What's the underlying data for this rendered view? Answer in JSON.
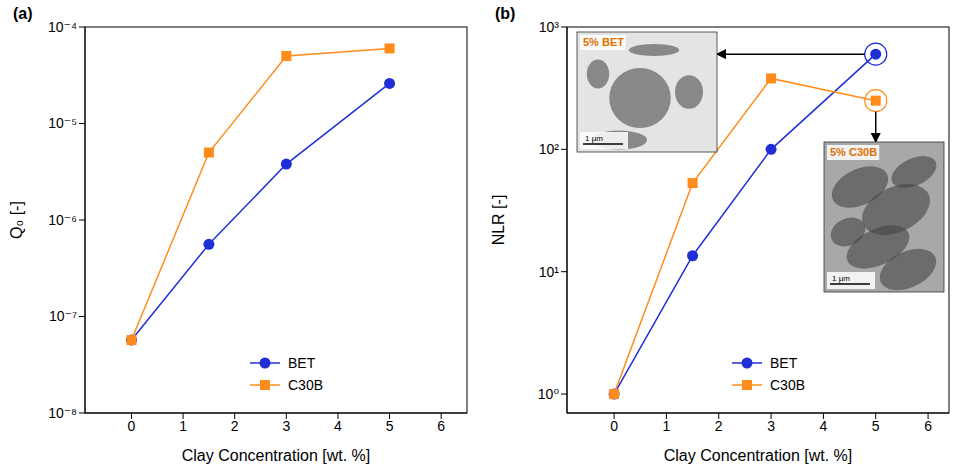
{
  "chart_data": [
    {
      "type": "line",
      "panel": "(a)",
      "x_label": "Clay Concentration [wt. %]",
      "y_label": "Q₀ [-]",
      "x": [
        0,
        1.5,
        3,
        5
      ],
      "series": [
        {
          "name": "BET",
          "color": "#1f2fd6",
          "marker": "circle",
          "values": [
            5.7e-08,
            5.6e-07,
            3.8e-06,
            2.6e-05
          ]
        },
        {
          "name": "C30B",
          "color": "#ff8c1a",
          "marker": "square",
          "values": [
            5.7e-08,
            5e-06,
            5e-05,
            6e-05
          ]
        }
      ],
      "xlim": [
        -0.9,
        6.5
      ],
      "xticks": [
        0,
        1,
        2,
        3,
        4,
        5,
        6
      ],
      "ylim": [
        1e-08,
        0.0001
      ],
      "yticks": [
        {
          "value": 1e-08,
          "label": "10⁻⁸"
        },
        {
          "value": 1e-07,
          "label": "10⁻⁷"
        },
        {
          "value": 1e-06,
          "label": "10⁻⁶"
        },
        {
          "value": 1e-05,
          "label": "10⁻⁵"
        },
        {
          "value": 0.0001,
          "label": "10⁻⁴"
        }
      ],
      "log": "y",
      "grid": false,
      "legend": "lower right"
    },
    {
      "type": "line",
      "panel": "(b)",
      "x_label": "Clay Concentration [wt. %]",
      "y_label": "NLR [-]",
      "x": [
        0,
        1.5,
        3,
        5
      ],
      "series": [
        {
          "name": "BET",
          "color": "#1f2fd6",
          "marker": "circle",
          "values": [
            1,
            13.5,
            100,
            600
          ]
        },
        {
          "name": "C30B",
          "color": "#ff8c1a",
          "marker": "square",
          "values": [
            1,
            53,
            380,
            250
          ]
        }
      ],
      "xlim": [
        -0.9,
        6.4
      ],
      "xticks": [
        0,
        1,
        2,
        3,
        4,
        5,
        6
      ],
      "ylim": [
        0.7,
        1000
      ],
      "yticks": [
        {
          "value": 1,
          "label": "10⁰"
        },
        {
          "value": 10,
          "label": "10¹"
        },
        {
          "value": 100,
          "label": "10²"
        },
        {
          "value": 1000,
          "label": "10³"
        }
      ],
      "log": "y",
      "grid": false,
      "legend": "lower right",
      "insets": [
        {
          "label": "5% BET",
          "scale_bar": "1 µm",
          "points_to": {
            "series": "BET",
            "x": 5
          }
        },
        {
          "label": "5% C30B",
          "scale_bar": "1 µm",
          "points_to": {
            "series": "C30B",
            "x": 5
          }
        }
      ]
    }
  ]
}
